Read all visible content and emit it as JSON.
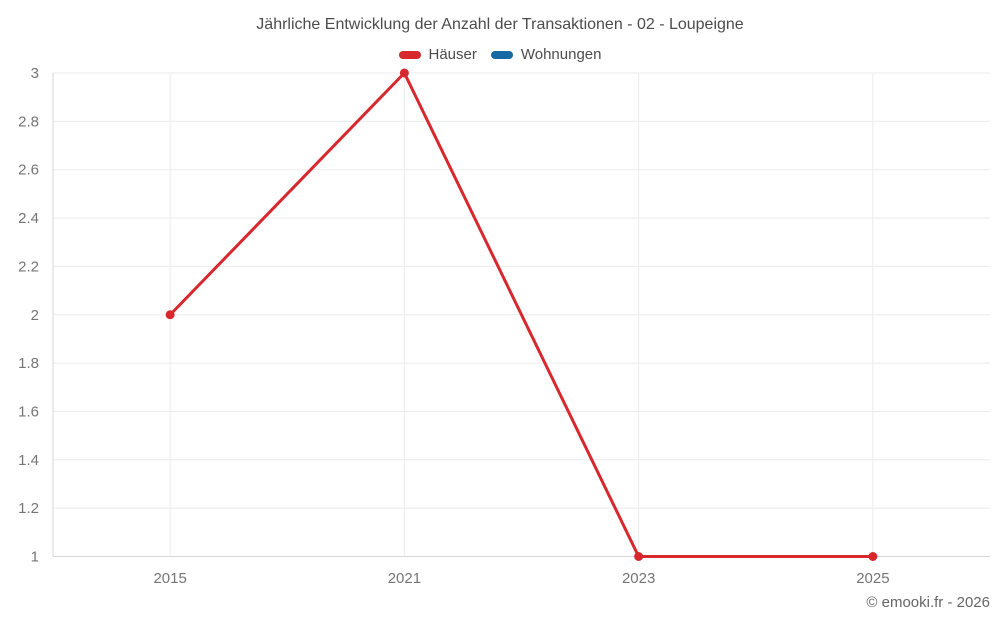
{
  "title": "Jährliche Entwicklung der Anzahl der Transaktionen - 02 - Loupeigne",
  "footer": "© emooki.fr - 2026",
  "colors": {
    "title_text": "#4c4c4c",
    "tick_text": "#757575",
    "gridline": "#ebebeb",
    "axis_line": "#d6d6d6",
    "series_red": "#d7282e",
    "series_blue": "#1669a2",
    "footer_text": "#666666",
    "background": "#ffffff"
  },
  "chart_data": {
    "type": "line",
    "title": "Jährliche Entwicklung der Anzahl der Transaktionen - 02 - Loupeigne",
    "categories": [
      "2015",
      "2021",
      "2023",
      "2025"
    ],
    "series": [
      {
        "name": "Häuser",
        "color": "#d7282e",
        "values": [
          2,
          3,
          1,
          1
        ]
      },
      {
        "name": "Wohnungen",
        "color": "#1669a2",
        "values": []
      }
    ],
    "xlabel": "",
    "ylabel": "",
    "ylim": [
      1,
      3
    ],
    "ytick_values": [
      1,
      1.2,
      1.4,
      1.6,
      1.8,
      2,
      2.2,
      2.4,
      2.6,
      2.8,
      3
    ],
    "ytick_labels": [
      "1",
      "1.2",
      "1.4",
      "1.6",
      "1.8",
      "2",
      "2.2",
      "2.4",
      "2.6",
      "2.8",
      "3"
    ],
    "grid": true,
    "legend_position": "top",
    "marker": "circle"
  }
}
